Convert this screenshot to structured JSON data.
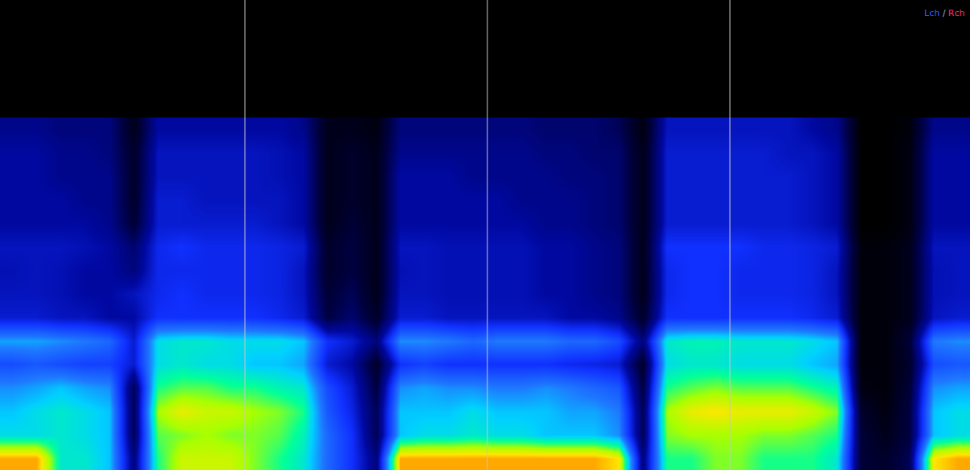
{
  "chart_data": {
    "type": "heatmap",
    "annotation": [
      {
        "text": "Lch",
        "color": "#2a5cff"
      },
      {
        "text": " / ",
        "color": "#b0b0c0"
      },
      {
        "text": "Rch",
        "color": "#ff3070"
      }
    ],
    "xlim": [
      -0.5,
      39.5
    ],
    "ylim": [
      -0.5,
      19.5
    ],
    "zlim": [
      0,
      100
    ],
    "tick_labels": false,
    "grid": false,
    "vlines": [
      9.6,
      19.6,
      29.6
    ],
    "z": [
      [
        85,
        85,
        60,
        60,
        55,
        20,
        65,
        75,
        75,
        75,
        70,
        65,
        60,
        45,
        35,
        20,
        85,
        85,
        85,
        85,
        85,
        85,
        85,
        85,
        85,
        80,
        20,
        65,
        65,
        70,
        70,
        65,
        65,
        65,
        60,
        10,
        8,
        15,
        80,
        85
      ],
      [
        58,
        58,
        60,
        58,
        55,
        15,
        68,
        70,
        72,
        70,
        70,
        68,
        62,
        45,
        35,
        15,
        55,
        58,
        58,
        60,
        58,
        58,
        55,
        55,
        55,
        50,
        15,
        70,
        72,
        72,
        72,
        70,
        70,
        68,
        65,
        10,
        5,
        12,
        55,
        58
      ],
      [
        55,
        58,
        60,
        58,
        55,
        15,
        72,
        78,
        75,
        75,
        72,
        70,
        65,
        42,
        32,
        15,
        55,
        55,
        55,
        58,
        55,
        55,
        55,
        52,
        52,
        48,
        15,
        72,
        78,
        80,
        78,
        78,
        78,
        75,
        70,
        8,
        3,
        12,
        55,
        58
      ],
      [
        50,
        52,
        55,
        52,
        50,
        15,
        65,
        68,
        68,
        65,
        65,
        62,
        60,
        40,
        30,
        12,
        50,
        52,
        50,
        50,
        48,
        48,
        50,
        48,
        45,
        42,
        12,
        65,
        68,
        70,
        68,
        68,
        68,
        65,
        62,
        3,
        2,
        10,
        50,
        52
      ],
      [
        40,
        42,
        40,
        38,
        38,
        30,
        58,
        60,
        58,
        58,
        55,
        55,
        52,
        30,
        25,
        8,
        35,
        38,
        35,
        35,
        35,
        35,
        35,
        33,
        32,
        30,
        8,
        58,
        60,
        60,
        58,
        58,
        58,
        55,
        52,
        2,
        2,
        8,
        40,
        42
      ],
      [
        52,
        52,
        50,
        48,
        45,
        30,
        58,
        60,
        60,
        58,
        58,
        58,
        55,
        35,
        30,
        20,
        50,
        50,
        48,
        45,
        48,
        48,
        48,
        45,
        45,
        40,
        20,
        60,
        62,
        62,
        60,
        60,
        60,
        58,
        55,
        2,
        2,
        10,
        48,
        50
      ],
      [
        30,
        30,
        28,
        28,
        25,
        25,
        35,
        35,
        35,
        35,
        35,
        33,
        30,
        12,
        18,
        8,
        30,
        30,
        28,
        28,
        28,
        28,
        28,
        25,
        25,
        22,
        8,
        35,
        35,
        35,
        35,
        35,
        35,
        33,
        30,
        2,
        2,
        5,
        28,
        30
      ],
      [
        28,
        28,
        27,
        25,
        25,
        28,
        33,
        35,
        33,
        33,
        33,
        32,
        28,
        10,
        15,
        5,
        28,
        28,
        27,
        27,
        27,
        27,
        25,
        25,
        22,
        20,
        5,
        33,
        35,
        35,
        33,
        33,
        33,
        32,
        28,
        2,
        2,
        5,
        27,
        28
      ],
      [
        27,
        28,
        27,
        25,
        25,
        20,
        33,
        33,
        33,
        33,
        33,
        32,
        28,
        8,
        12,
        5,
        27,
        28,
        27,
        27,
        27,
        27,
        25,
        25,
        22,
        20,
        5,
        33,
        35,
        35,
        33,
        33,
        33,
        32,
        28,
        2,
        2,
        5,
        27,
        28
      ],
      [
        28,
        28,
        28,
        27,
        25,
        18,
        33,
        35,
        33,
        33,
        33,
        32,
        30,
        8,
        12,
        5,
        28,
        28,
        27,
        27,
        27,
        27,
        25,
        25,
        22,
        20,
        5,
        35,
        35,
        35,
        35,
        33,
        33,
        32,
        30,
        2,
        2,
        5,
        28,
        28
      ],
      [
        25,
        25,
        25,
        25,
        22,
        10,
        30,
        30,
        30,
        30,
        30,
        28,
        25,
        5,
        10,
        5,
        25,
        25,
        25,
        25,
        25,
        25,
        22,
        22,
        20,
        18,
        5,
        30,
        30,
        30,
        30,
        30,
        30,
        28,
        25,
        0,
        0,
        3,
        25,
        25
      ],
      [
        25,
        25,
        25,
        22,
        22,
        8,
        30,
        30,
        28,
        28,
        28,
        28,
        25,
        5,
        8,
        5,
        25,
        25,
        25,
        25,
        25,
        22,
        22,
        22,
        20,
        18,
        5,
        30,
        30,
        30,
        30,
        30,
        30,
        28,
        25,
        0,
        0,
        3,
        25,
        25
      ],
      [
        25,
        25,
        22,
        22,
        22,
        8,
        28,
        28,
        28,
        28,
        28,
        27,
        25,
        5,
        8,
        5,
        25,
        25,
        25,
        22,
        22,
        22,
        22,
        20,
        20,
        18,
        5,
        30,
        30,
        30,
        30,
        30,
        30,
        28,
        25,
        0,
        0,
        3,
        25,
        25
      ],
      [
        25,
        25,
        22,
        22,
        20,
        8,
        28,
        28,
        28,
        28,
        28,
        27,
        25,
        5,
        8,
        5,
        22,
        22,
        22,
        22,
        22,
        22,
        20,
        20,
        18,
        18,
        5,
        30,
        30,
        30,
        30,
        30,
        28,
        28,
        25,
        0,
        0,
        3,
        25,
        25
      ],
      [
        22,
        22,
        20,
        20,
        20,
        5,
        25,
        25,
        25,
        25,
        25,
        25,
        22,
        5,
        5,
        3,
        20,
        20,
        20,
        20,
        20,
        20,
        18,
        18,
        18,
        15,
        3,
        28,
        28,
        28,
        28,
        28,
        28,
        25,
        22,
        0,
        0,
        2,
        22,
        22
      ]
    ]
  }
}
